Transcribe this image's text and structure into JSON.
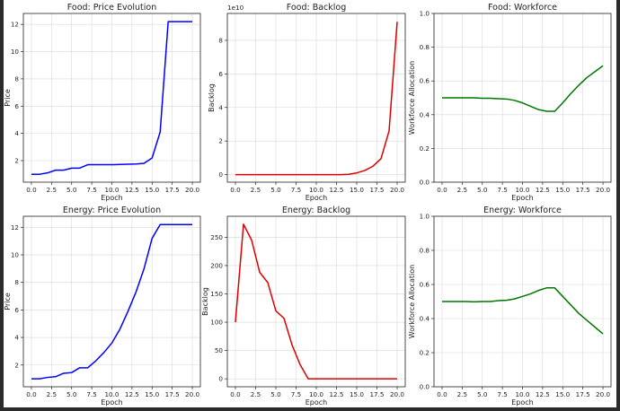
{
  "chart_data": [
    {
      "type": "line",
      "title": "Food: Price Evolution",
      "xlabel": "Epoch",
      "ylabel": "Price",
      "color": "#0000ff",
      "x": [
        0,
        1,
        2,
        3,
        4,
        5,
        6,
        7,
        8,
        9,
        10,
        11,
        12,
        13,
        14,
        15,
        16,
        17,
        18,
        19,
        20
      ],
      "values": [
        1.0,
        1.0,
        1.1,
        1.3,
        1.3,
        1.45,
        1.45,
        1.7,
        1.7,
        1.7,
        1.7,
        1.72,
        1.74,
        1.75,
        1.8,
        2.2,
        4.1,
        12.2,
        12.2,
        12.2,
        12.2
      ],
      "xlim": [
        -1,
        21
      ],
      "ylim": [
        0.42,
        12.8
      ],
      "xticks": [
        0.0,
        2.5,
        5.0,
        7.5,
        10.0,
        12.5,
        15.0,
        17.5,
        20.0
      ],
      "xtick_labels": [
        "0.0",
        "2.5",
        "5.0",
        "7.5",
        "10.0",
        "12.5",
        "15.0",
        "17.5",
        "20.0"
      ],
      "yticks": [
        2,
        4,
        6,
        8,
        10,
        12
      ],
      "ytick_labels": [
        "2",
        "4",
        "6",
        "8",
        "10",
        "12"
      ],
      "grid": true
    },
    {
      "type": "line",
      "title": "Food: Backlog",
      "xlabel": "Epoch",
      "ylabel": "Backlog",
      "offset_text": "1e10",
      "color": "#dd0000",
      "x": [
        0,
        1,
        2,
        3,
        4,
        5,
        6,
        7,
        8,
        9,
        10,
        11,
        12,
        13,
        14,
        15,
        16,
        17,
        18,
        19,
        20
      ],
      "values": [
        0,
        0,
        0,
        0,
        0,
        0,
        0,
        0,
        0,
        0,
        0,
        0,
        0,
        0,
        0.02,
        0.1,
        0.25,
        0.5,
        0.95,
        2.6,
        9.1
      ],
      "xlim": [
        -1,
        21
      ],
      "ylim": [
        -0.45,
        9.6
      ],
      "xticks": [
        0.0,
        2.5,
        5.0,
        7.5,
        10.0,
        12.5,
        15.0,
        17.5,
        20.0
      ],
      "xtick_labels": [
        "0.0",
        "2.5",
        "5.0",
        "7.5",
        "10.0",
        "12.5",
        "15.0",
        "17.5",
        "20.0"
      ],
      "yticks": [
        0,
        2,
        4,
        6,
        8
      ],
      "ytick_labels": [
        "0",
        "2",
        "4",
        "6",
        "8"
      ],
      "grid": true
    },
    {
      "type": "line",
      "title": "Food: Workforce",
      "xlabel": "Epoch",
      "ylabel": "Workforce Allocation",
      "color": "#007700",
      "x": [
        0,
        1,
        2,
        3,
        4,
        5,
        6,
        7,
        8,
        9,
        10,
        11,
        12,
        13,
        14,
        15,
        16,
        17,
        18,
        19,
        20
      ],
      "values": [
        0.5,
        0.5,
        0.5,
        0.5,
        0.5,
        0.497,
        0.497,
        0.495,
        0.493,
        0.485,
        0.47,
        0.45,
        0.43,
        0.42,
        0.42,
        0.47,
        0.525,
        0.575,
        0.62,
        0.655,
        0.69
      ],
      "xlim": [
        -1,
        21
      ],
      "ylim": [
        0.0,
        1.0
      ],
      "xticks": [
        0.0,
        2.5,
        5.0,
        7.5,
        10.0,
        12.5,
        15.0,
        17.5,
        20.0
      ],
      "xtick_labels": [
        "0.0",
        "2.5",
        "5.0",
        "7.5",
        "10.0",
        "12.5",
        "15.0",
        "17.5",
        "20.0"
      ],
      "yticks": [
        0.0,
        0.2,
        0.4,
        0.6,
        0.8,
        1.0
      ],
      "ytick_labels": [
        "0.0",
        "0.2",
        "0.4",
        "0.6",
        "0.8",
        "1.0"
      ],
      "grid": true
    },
    {
      "type": "line",
      "title": "Energy: Price Evolution",
      "xlabel": "Epoch",
      "ylabel": "Price",
      "color": "#0000ff",
      "x": [
        0,
        1,
        2,
        3,
        4,
        5,
        6,
        7,
        8,
        9,
        10,
        11,
        12,
        13,
        14,
        15,
        16,
        17,
        18,
        19,
        20
      ],
      "values": [
        1.0,
        1.0,
        1.1,
        1.15,
        1.4,
        1.45,
        1.8,
        1.8,
        2.3,
        2.9,
        3.6,
        4.6,
        5.9,
        7.3,
        9.0,
        11.2,
        12.2,
        12.2,
        12.2,
        12.2,
        12.2
      ],
      "xlim": [
        -1,
        21
      ],
      "ylim": [
        0.42,
        12.8
      ],
      "xticks": [
        0.0,
        2.5,
        5.0,
        7.5,
        10.0,
        12.5,
        15.0,
        17.5,
        20.0
      ],
      "xtick_labels": [
        "0.0",
        "2.5",
        "5.0",
        "7.5",
        "10.0",
        "12.5",
        "15.0",
        "17.5",
        "20.0"
      ],
      "yticks": [
        2,
        4,
        6,
        8,
        10,
        12
      ],
      "ytick_labels": [
        "2",
        "4",
        "6",
        "8",
        "10",
        "12"
      ],
      "grid": true
    },
    {
      "type": "line",
      "title": "Energy: Backlog",
      "xlabel": "Epoch",
      "ylabel": "Backlog",
      "color": "#dd0000",
      "x": [
        0,
        1,
        2,
        3,
        4,
        5,
        6,
        7,
        8,
        9,
        10,
        11,
        12,
        13,
        14,
        15,
        16,
        17,
        18,
        19,
        20
      ],
      "values": [
        100,
        273,
        245,
        188,
        170,
        120,
        107,
        60,
        25,
        0,
        0,
        0,
        0,
        0,
        0,
        0,
        0,
        0,
        0,
        0,
        0
      ],
      "xlim": [
        -1,
        21
      ],
      "ylim": [
        -14,
        287
      ],
      "xticks": [
        0.0,
        2.5,
        5.0,
        7.5,
        10.0,
        12.5,
        15.0,
        17.5,
        20.0
      ],
      "xtick_labels": [
        "0.0",
        "2.5",
        "5.0",
        "7.5",
        "10.0",
        "12.5",
        "15.0",
        "17.5",
        "20.0"
      ],
      "yticks": [
        0,
        50,
        100,
        150,
        200,
        250
      ],
      "ytick_labels": [
        "0",
        "50",
        "100",
        "150",
        "200",
        "250"
      ],
      "grid": true
    },
    {
      "type": "line",
      "title": "Energy: Workforce",
      "xlabel": "Epoch",
      "ylabel": "Workforce Allocation",
      "color": "#007700",
      "x": [
        0,
        1,
        2,
        3,
        4,
        5,
        6,
        7,
        8,
        9,
        10,
        11,
        12,
        13,
        14,
        15,
        16,
        17,
        18,
        19,
        20
      ],
      "values": [
        0.5,
        0.5,
        0.5,
        0.5,
        0.498,
        0.5,
        0.5,
        0.505,
        0.507,
        0.515,
        0.53,
        0.545,
        0.565,
        0.58,
        0.58,
        0.53,
        0.48,
        0.43,
        0.39,
        0.35,
        0.31
      ],
      "xlim": [
        -1,
        21
      ],
      "ylim": [
        0.0,
        1.0
      ],
      "xticks": [
        0.0,
        2.5,
        5.0,
        7.5,
        10.0,
        12.5,
        15.0,
        17.5,
        20.0
      ],
      "xtick_labels": [
        "0.0",
        "2.5",
        "5.0",
        "7.5",
        "10.0",
        "12.5",
        "15.0",
        "17.5",
        "20.0"
      ],
      "yticks": [
        0.0,
        0.2,
        0.4,
        0.6,
        0.8,
        1.0
      ],
      "ytick_labels": [
        "0.0",
        "0.2",
        "0.4",
        "0.6",
        "0.8",
        "1.0"
      ],
      "grid": true
    }
  ]
}
